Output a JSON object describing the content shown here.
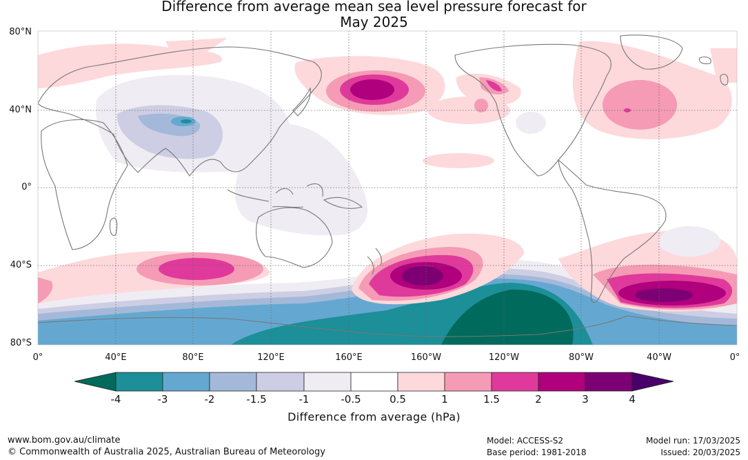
{
  "title": {
    "line1": "Difference from average mean sea level pressure forecast for",
    "line2": "May 2025"
  },
  "map": {
    "lat_labels": [
      "80°N",
      "40°N",
      "0°",
      "40°S",
      "80°S"
    ],
    "lon_labels": [
      "0°",
      "40°E",
      "80°E",
      "120°E",
      "160°E",
      "160°W",
      "120°W",
      "80°W",
      "40°W",
      "0°"
    ]
  },
  "colorbar": {
    "tick_labels": [
      "-4",
      "-3",
      "-2",
      "-1.5",
      "-1",
      "-0.5",
      "0.5",
      "1",
      "1.5",
      "2",
      "3",
      "4"
    ],
    "colors": [
      "#006a5c",
      "#1c8f98",
      "#64a8d1",
      "#a4b9d9",
      "#cdcee4",
      "#efecf3",
      "#ffffff",
      "#fdd9dc",
      "#f59bb5",
      "#df3a9b",
      "#b0007d",
      "#7c0073",
      "#4a006a"
    ],
    "title": "Difference from average (hPa)"
  },
  "footer": {
    "website": "www.bom.gov.au/climate",
    "copyright": "© Commonwealth of Australia 2025, Australian Bureau of Meteorology",
    "model": "Model: ACCESS-S2",
    "base_period": "Base period: 1981-2018",
    "model_run": "Model run: 17/03/2025",
    "issued": "Issued: 20/03/2025"
  }
}
